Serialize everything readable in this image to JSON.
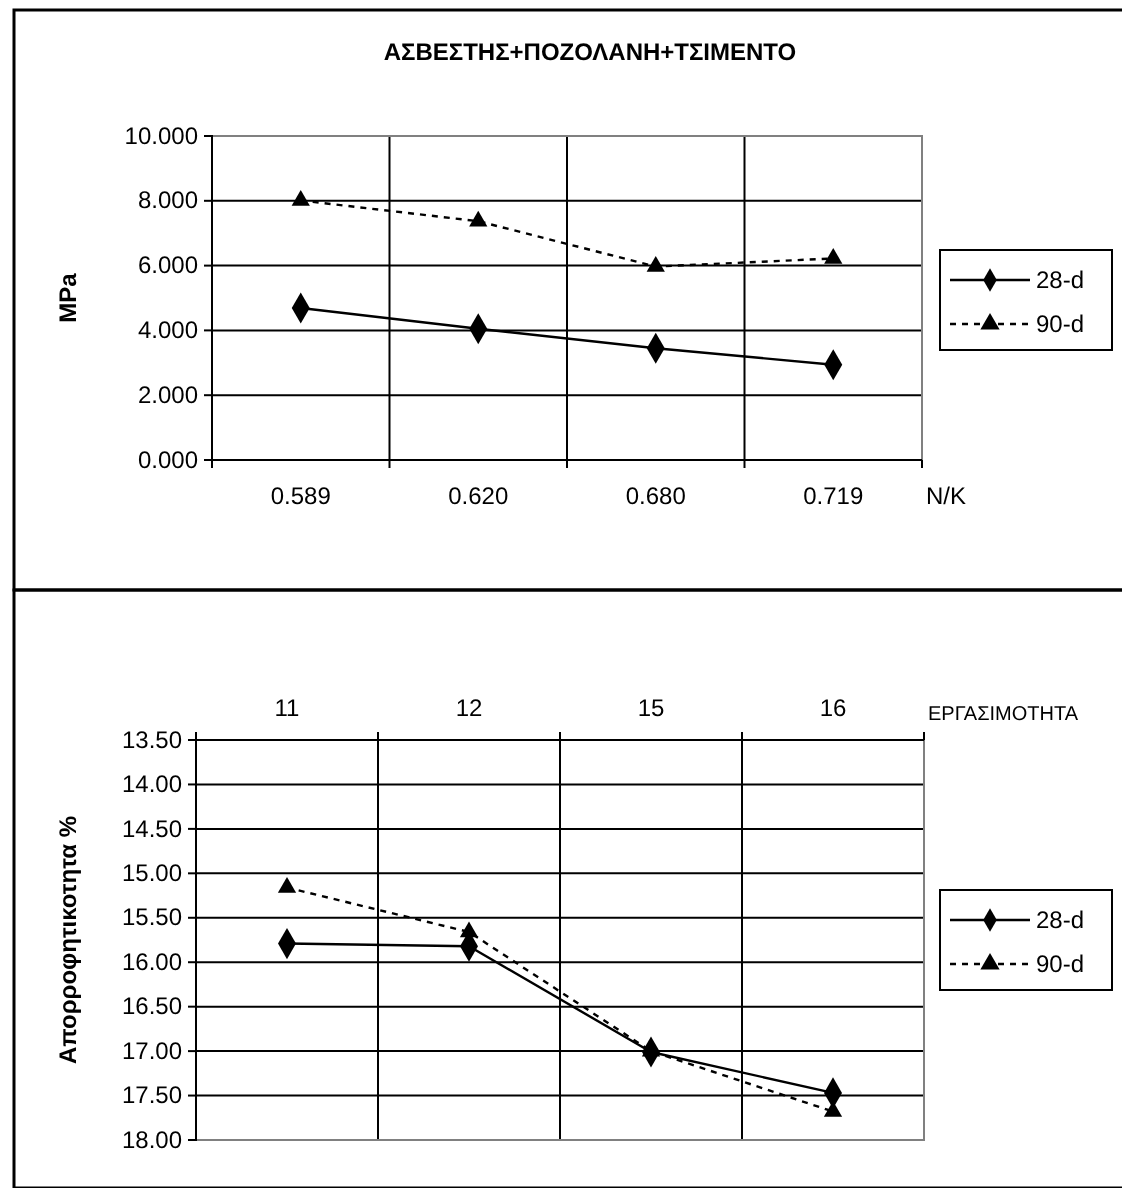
{
  "chart_data": [
    {
      "type": "line",
      "title": "ΑΣΒΕΣΤΗΣ+ΠΟΖΟΛΑΝΗ+ΤΣΙΜΕΝΤΟ",
      "xlabel": "N/K",
      "ylabel": "MPa",
      "categories": [
        "0.589",
        "0.620",
        "0.680",
        "0.719"
      ],
      "series": [
        {
          "name": "28-d",
          "color": "#000000",
          "marker": "diamond",
          "line_style": "solid",
          "values": [
            4.69,
            4.05,
            3.45,
            2.94
          ]
        },
        {
          "name": "90-d",
          "color": "#000000",
          "marker": "triangle",
          "line_style": "dashed",
          "values": [
            8.01,
            7.37,
            5.97,
            6.22
          ]
        }
      ],
      "ylim": [
        0,
        10
      ],
      "yticks": [
        {
          "value": 0,
          "label": "0.000"
        },
        {
          "value": 2,
          "label": "2.000"
        },
        {
          "value": 4,
          "label": "4.000"
        },
        {
          "value": 6,
          "label": "6.000"
        },
        {
          "value": 8,
          "label": "8.000"
        },
        {
          "value": 10,
          "label": "10.000"
        }
      ],
      "grid": true,
      "legend": "right"
    },
    {
      "type": "line",
      "xlabel": "ΕΡΓΑΣΙΜΟΤΗΤΑ",
      "ylabel": "Απορροφητικοτητα %",
      "categories": [
        "11",
        "12",
        "15",
        "16"
      ],
      "series": [
        {
          "name": "28-d",
          "color": "#000000",
          "marker": "diamond",
          "line_style": "solid",
          "values": [
            15.79,
            15.82,
            17.01,
            17.47
          ]
        },
        {
          "name": "90-d",
          "color": "#000000",
          "marker": "triangle",
          "line_style": "dashed",
          "values": [
            15.16,
            15.66,
            17.0,
            17.68
          ]
        }
      ],
      "ylim": [
        18,
        13.5
      ],
      "yticks": [
        {
          "value": 13.5,
          "label": "13.50"
        },
        {
          "value": 14,
          "label": "14.00"
        },
        {
          "value": 14.5,
          "label": "14.50"
        },
        {
          "value": 15,
          "label": "15.00"
        },
        {
          "value": 15.5,
          "label": "15.50"
        },
        {
          "value": 16,
          "label": "16.00"
        },
        {
          "value": 16.5,
          "label": "16.50"
        },
        {
          "value": 17,
          "label": "17.00"
        },
        {
          "value": 17.5,
          "label": "17.50"
        },
        {
          "value": 18,
          "label": "18.00"
        }
      ],
      "grid": true,
      "legend": "right"
    }
  ]
}
